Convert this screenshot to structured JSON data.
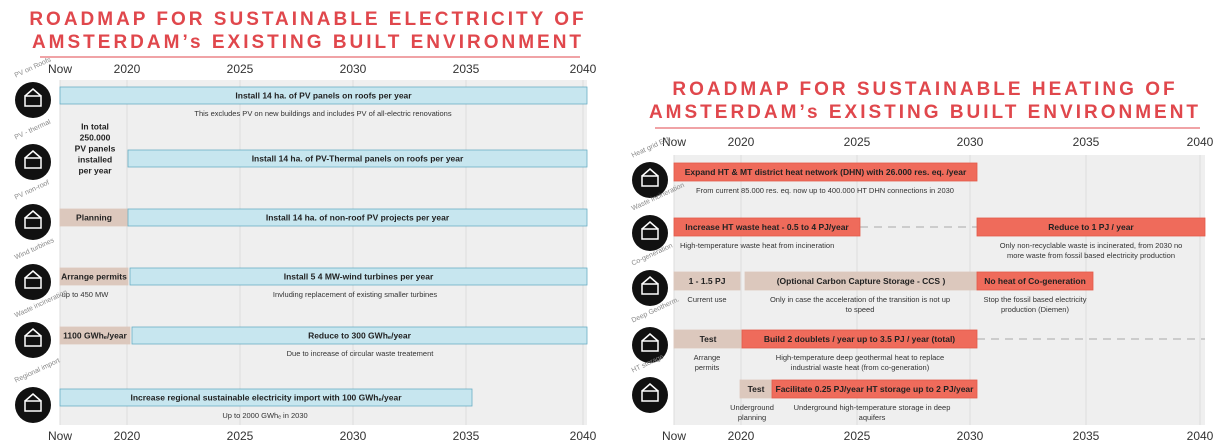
{
  "electricity": {
    "title": [
      "ROADMAP FOR SUSTAINABLE ELECTRICITY OF",
      "AMSTERDAM’s EXISTING BUILT ENVIRONMENT"
    ],
    "axis": [
      "Now",
      "2020",
      "2025",
      "2030",
      "2035",
      "2040"
    ],
    "side_note": [
      "In total",
      "250.000",
      "PV panels",
      "installed",
      "per year"
    ],
    "rows": [
      {
        "label": "PV on Roofs",
        "bars": [
          "Install 14 ha. of PV panels on roofs per year"
        ],
        "notes": [
          [
            "This excludes PV on new buildings and includes PV of all-electric renovations"
          ]
        ]
      },
      {
        "label": "PV - thermal",
        "bars": [
          "Install 14 ha. of PV-Thermal panels on roofs per year"
        ],
        "notes": []
      },
      {
        "label": "PV non-roof",
        "bars": [
          "Planning",
          "Install 14 ha. of non-roof PV projects per year"
        ],
        "notes": []
      },
      {
        "label": "Wind turbines",
        "bars": [
          "Arrange permits",
          "Install 5  4 MW-wind turbines per year"
        ],
        "notes": [
          [
            "up to 450 MW"
          ],
          [
            "Invluding replacement of existing smaller turbines"
          ]
        ]
      },
      {
        "label": "Waste incineration",
        "bars": [
          "1100 GWhₑ/year",
          "Reduce to 300 GWhₑ/year"
        ],
        "notes": [
          [
            "Due to increase of circular waste treatement"
          ]
        ]
      },
      {
        "label": "Regional import",
        "bars": [
          "Increase regional sustainable electricity import with 100 GWhₑ/year"
        ],
        "notes": [
          [
            "Up to 2000 GWhₑ in 2030"
          ]
        ]
      }
    ]
  },
  "heating": {
    "title": [
      "ROADMAP FOR SUSTAINABLE HEATING OF",
      "AMSTERDAM’s EXISTING BUILT ENVIRONMENT"
    ],
    "axis": [
      "Now",
      "2020",
      "2025",
      "2030",
      "2035",
      "2040"
    ],
    "rows": [
      {
        "label": "Heat grid Ext.",
        "bars": [
          "Expand HT & MT district heat network (DHN) with 26.000 res. eq. /year"
        ],
        "notes": [
          [
            "From current 85.000 res. eq. now up to 400.000 HT DHN connections in 2030"
          ]
        ]
      },
      {
        "label": "Waste incineration",
        "bars": [
          "Increase HT waste heat - 0.5 to 4 PJ/year",
          "Reduce to 1 PJ / year"
        ],
        "notes": [
          [
            "High-temperature waste heat from incineration"
          ],
          [
            "Only non-recyclable waste is incinerated, from 2030 no",
            "more waste from fossil based electricity production"
          ]
        ]
      },
      {
        "label": "Co-generation",
        "bars": [
          "1 - 1.5 PJ",
          "(Optional Carbon Capture Storage - CCS )",
          "No heat of Co-generation"
        ],
        "notes": [
          [
            "Current use"
          ],
          [
            "Only in case the acceleration of the transition is not up",
            "to speed"
          ],
          [
            "Stop the fossil based electricity",
            "production (Diemen)"
          ]
        ]
      },
      {
        "label": "Deep Geotherm.",
        "bars": [
          "Test",
          "Build 2 doublets / year up to 3.5 PJ / year (total)"
        ],
        "notes": [
          [
            "Arrange",
            "permits"
          ],
          [
            "High-temperature deep geothermal heat to replace",
            "industrial waste heat (from co-generation)"
          ]
        ]
      },
      {
        "label": "HT storage",
        "bars": [
          "Test",
          "Facilitate 0.25 PJ/year HT storage up to 2 PJ/year"
        ],
        "notes": [
          [
            "Underground",
            "planning"
          ],
          [
            "Underground high-temperature storage in deep",
            "aquifers"
          ]
        ]
      }
    ]
  }
}
